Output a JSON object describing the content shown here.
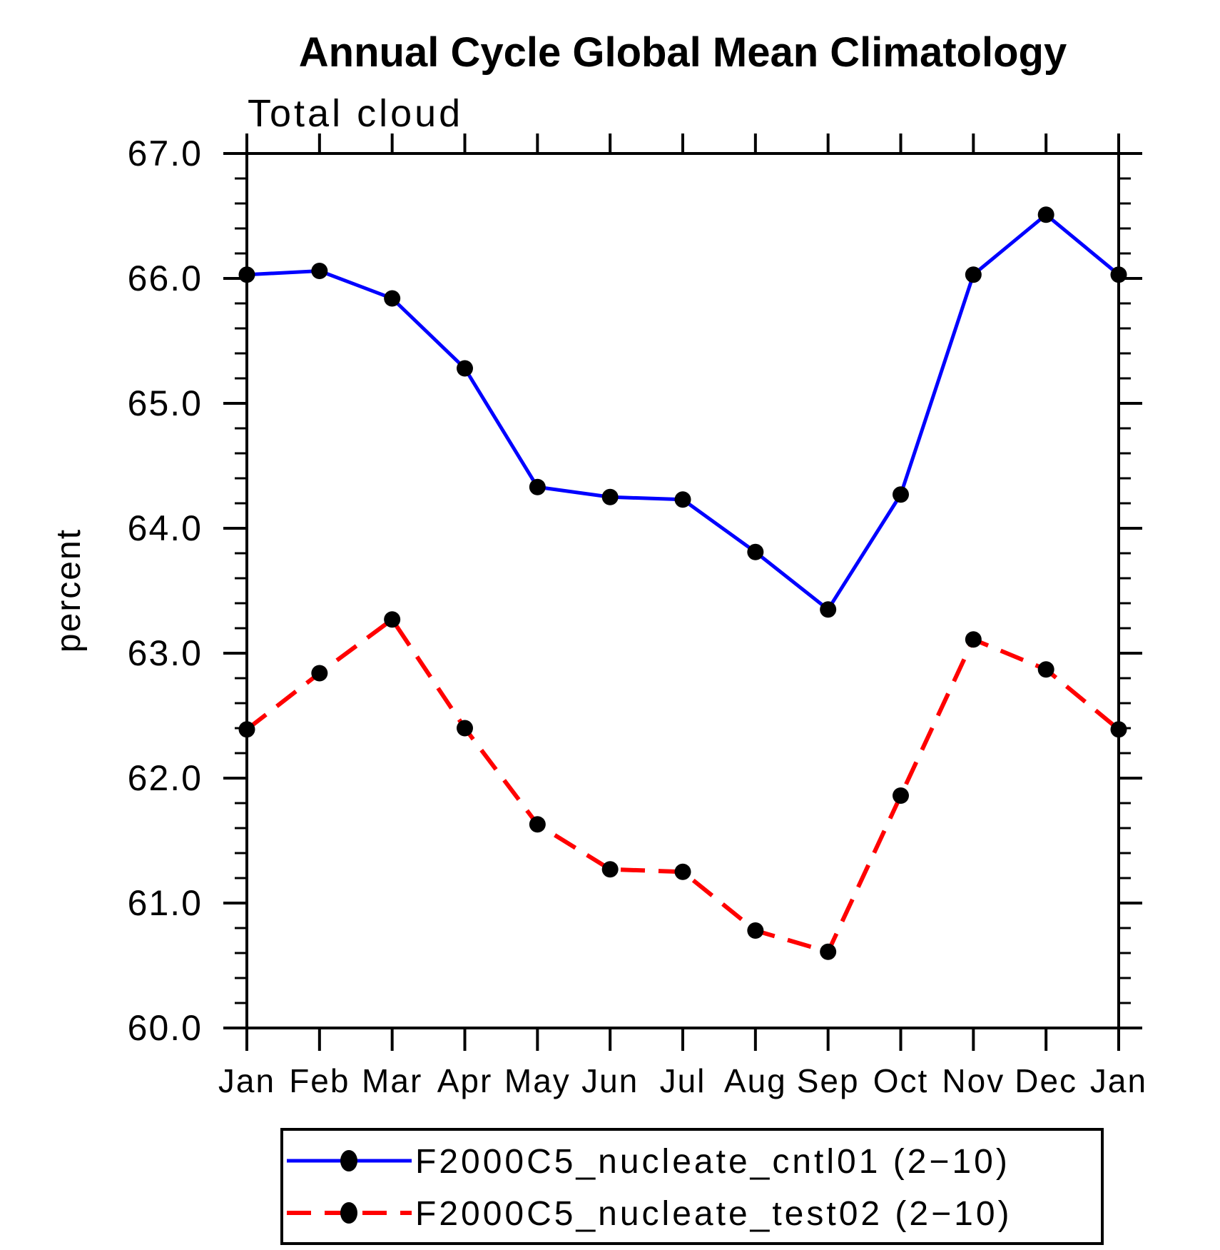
{
  "page": {
    "background": "#ffffff"
  },
  "chart_data": {
    "type": "line",
    "title": "Annual Cycle Global Mean Climatology",
    "subtitle": "Total cloud",
    "ylabel": "percent",
    "xlabel": "",
    "categories": [
      "Jan",
      "Feb",
      "Mar",
      "Apr",
      "May",
      "Jun",
      "Jul",
      "Aug",
      "Sep",
      "Oct",
      "Nov",
      "Dec",
      "Jan"
    ],
    "ylim": [
      60.0,
      67.0
    ],
    "ytick_step_major": 1.0,
    "ytick_step_minor": 0.2,
    "ytick_labels": [
      "60.0",
      "61.0",
      "62.0",
      "63.0",
      "64.0",
      "65.0",
      "66.0",
      "67.0"
    ],
    "grid": false,
    "legend_position": "bottom",
    "axis_color": "#000000",
    "series": [
      {
        "name": "F2000C5_nucleate_cntl01 (2−10)",
        "color": "#0000ff",
        "line_style": "solid",
        "marker": "filled-circle",
        "marker_color": "#000000",
        "values": [
          66.03,
          66.06,
          65.84,
          65.28,
          64.33,
          64.25,
          64.23,
          63.81,
          63.35,
          64.27,
          66.03,
          66.51,
          66.03
        ]
      },
      {
        "name": "F2000C5_nucleate_test02 (2−10)",
        "color": "#ff0000",
        "line_style": "dashed",
        "marker": "filled-circle",
        "marker_color": "#000000",
        "values": [
          62.39,
          62.84,
          63.27,
          62.4,
          61.63,
          61.27,
          61.25,
          60.78,
          60.61,
          61.86,
          63.11,
          62.87,
          62.39
        ]
      }
    ]
  }
}
